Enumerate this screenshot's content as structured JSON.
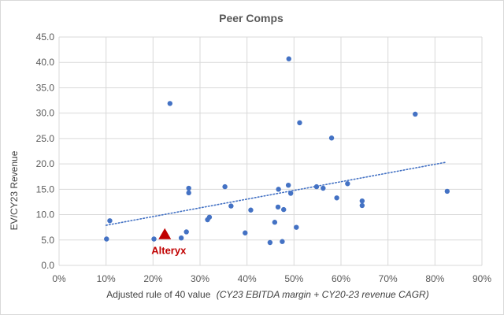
{
  "chart_data": {
    "type": "scatter",
    "title": "Peer Comps",
    "xlabel": "Adjusted rule of 40 value",
    "xlabel_italic": "(CY23 EBITDA margin + CY20-23 revenue CAGR)",
    "ylabel": "EV/CY23 Revenue",
    "xlim": [
      0,
      90
    ],
    "ylim": [
      0,
      45
    ],
    "x_ticks": [
      "0%",
      "10%",
      "20%",
      "30%",
      "40%",
      "50%",
      "60%",
      "70%",
      "80%",
      "90%"
    ],
    "y_ticks": [
      "0.0",
      "5.0",
      "10.0",
      "15.0",
      "20.0",
      "25.0",
      "30.0",
      "35.0",
      "40.0",
      "45.0"
    ],
    "grid": "vertical and horizontal major gridlines",
    "legend": "none",
    "colors": {
      "points": "#4472c4",
      "highlight": "#c00000",
      "grid": "#d9d9d9"
    },
    "series": [
      {
        "points": [
          {
            "x": 10.1,
            "y": 5.2
          },
          {
            "x": 10.8,
            "y": 8.8
          },
          {
            "x": 20.2,
            "y": 5.2
          },
          {
            "x": 23.6,
            "y": 31.9
          },
          {
            "x": 26.0,
            "y": 5.4
          },
          {
            "x": 27.1,
            "y": 6.6
          },
          {
            "x": 27.6,
            "y": 15.2
          },
          {
            "x": 27.6,
            "y": 14.3
          },
          {
            "x": 31.6,
            "y": 9.0
          },
          {
            "x": 32.0,
            "y": 9.5
          },
          {
            "x": 35.3,
            "y": 15.5
          },
          {
            "x": 36.6,
            "y": 11.7
          },
          {
            "x": 39.6,
            "y": 6.4
          },
          {
            "x": 40.8,
            "y": 10.9
          },
          {
            "x": 44.9,
            "y": 4.5
          },
          {
            "x": 45.9,
            "y": 8.5
          },
          {
            "x": 46.6,
            "y": 11.5
          },
          {
            "x": 46.7,
            "y": 15.0
          },
          {
            "x": 47.5,
            "y": 4.7
          },
          {
            "x": 47.8,
            "y": 11.0
          },
          {
            "x": 48.8,
            "y": 15.8
          },
          {
            "x": 49.3,
            "y": 14.2
          },
          {
            "x": 48.9,
            "y": 40.7
          },
          {
            "x": 50.5,
            "y": 7.5
          },
          {
            "x": 51.2,
            "y": 28.1
          },
          {
            "x": 54.8,
            "y": 15.5
          },
          {
            "x": 56.2,
            "y": 15.2
          },
          {
            "x": 58.0,
            "y": 25.1
          },
          {
            "x": 59.1,
            "y": 13.3
          },
          {
            "x": 61.4,
            "y": 16.1
          },
          {
            "x": 64.5,
            "y": 12.7
          },
          {
            "x": 64.5,
            "y": 11.8
          },
          {
            "x": 75.8,
            "y": 29.8
          },
          {
            "x": 82.6,
            "y": 14.6
          }
        ]
      }
    ],
    "highlight": {
      "label": "Alteryx",
      "x": 22.5,
      "y": 6.1,
      "marker": "triangle"
    },
    "trendline": {
      "type": "linear",
      "x": [
        10,
        82.2
      ],
      "y": [
        7.9,
        20.3
      ],
      "style": "dotted"
    }
  }
}
